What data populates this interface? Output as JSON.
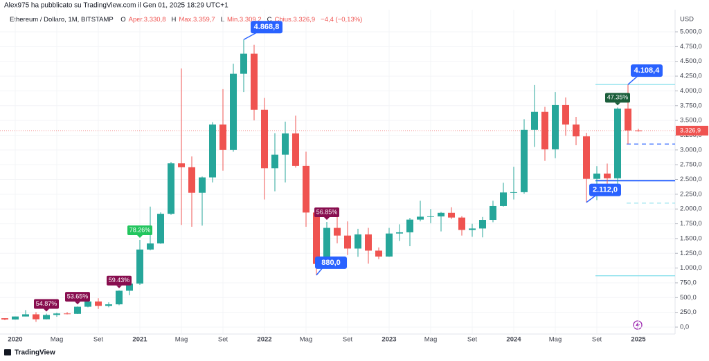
{
  "header": "Alex975 ha pubblicato su TradingView.com il Gen 01, 2025 18:29 UTC+1",
  "footer": "TradingView",
  "chart_data": {
    "type": "candlestick",
    "title": "Ethereum / Dollaro, 1M, BITSTAMP",
    "ohlc_legend": [
      {
        "key": "O",
        "text": "Aper.3.330,8"
      },
      {
        "key": "H",
        "text": "Max.3.359,7"
      },
      {
        "key": "L",
        "text": "Min.3.309,2"
      },
      {
        "key": "C",
        "text": "Chius.3.326,9"
      }
    ],
    "change": "−4,4 (−0,13%)",
    "y_unit": "USD",
    "categories": [
      null,
      "2020",
      null,
      null,
      null,
      "Mag",
      null,
      null,
      null,
      "Set",
      null,
      null,
      null,
      "2021",
      null,
      null,
      null,
      "Mag",
      null,
      null,
      null,
      "Set",
      null,
      null,
      null,
      "2022",
      null,
      null,
      null,
      "Mag",
      null,
      null,
      null,
      "Set",
      null,
      null,
      null,
      "2023",
      null,
      null,
      null,
      "Mag",
      null,
      null,
      null,
      "Set",
      null,
      null,
      null,
      "2024",
      null,
      null,
      null,
      "Mag",
      null,
      null,
      null,
      "Set",
      null,
      null,
      null,
      "2025"
    ],
    "open": [
      151,
      129,
      180,
      217,
      133,
      206,
      231,
      225,
      345,
      434,
      360,
      386,
      616,
      737,
      1314,
      1417,
      1919,
      2773,
      2707,
      2275,
      2535,
      3430,
      3000,
      4290,
      4630,
      3680,
      2690,
      2920,
      3280,
      2730,
      1940,
      1070,
      1680,
      1550,
      1330,
      1570,
      1295,
      1195,
      1585,
      1605,
      1820,
      1870,
      1875,
      1935,
      1855,
      1645,
      1670,
      1815,
      2050,
      2280,
      2285,
      3340,
      3645,
      3010,
      3760,
      3430,
      3230,
      2510,
      2600,
      2520,
      3700,
      3330.8
    ],
    "high": [
      153,
      180,
      288,
      254,
      228,
      245,
      255,
      350,
      444,
      489,
      420,
      623,
      757,
      1476,
      2040,
      1943,
      2797,
      4380,
      2890,
      2550,
      3470,
      4030,
      4460,
      4868.8,
      4780,
      3880,
      3285,
      3480,
      3580,
      2970,
      1970,
      1780,
      2030,
      1790,
      1665,
      1680,
      1350,
      1680,
      1740,
      1850,
      2140,
      2000,
      1950,
      2030,
      1880,
      1750,
      1865,
      2140,
      2445,
      2715,
      3520,
      4100,
      3730,
      3980,
      3890,
      3560,
      3290,
      2725,
      2770,
      3720,
      4108.4,
      3359.7
    ],
    "low": [
      117,
      126,
      180,
      90,
      130,
      176,
      216,
      222,
      335,
      308,
      335,
      370,
      540,
      715,
      1300,
      1410,
      1900,
      1730,
      1700,
      1718,
      2450,
      2650,
      2970,
      3980,
      3500,
      2160,
      2300,
      2450,
      2700,
      1700,
      880,
      1000,
      1420,
      1220,
      1190,
      1075,
      1150,
      1190,
      1460,
      1370,
      1790,
      1760,
      1620,
      1830,
      1550,
      1530,
      1520,
      1775,
      2040,
      2160,
      2260,
      3050,
      2815,
      2860,
      3240,
      3080,
      2112,
      2150,
      2300,
      2355,
      3100,
      3309.2
    ],
    "close": [
      129,
      180,
      217,
      133,
      206,
      231,
      225,
      345,
      434,
      360,
      386,
      616,
      737,
      1314,
      1417,
      1919,
      2773,
      2707,
      2275,
      2535,
      3430,
      3000,
      4290,
      4630,
      3680,
      2690,
      2920,
      3280,
      2730,
      1940,
      1070,
      1680,
      1550,
      1330,
      1570,
      1295,
      1195,
      1585,
      1605,
      1820,
      1870,
      1875,
      1935,
      1855,
      1645,
      1670,
      1815,
      2050,
      2280,
      2285,
      3340,
      3645,
      3010,
      3760,
      3430,
      3230,
      2510,
      2600,
      2520,
      3700,
      3330,
      3326.9
    ],
    "up_color": "#26a69a",
    "down_color": "#ef5350",
    "ylim": [
      -117,
      5375
    ],
    "yticks": [
      {
        "value": 0,
        "label": "0,0"
      },
      {
        "value": 250,
        "label": "250,0"
      },
      {
        "value": 500,
        "label": "500,0"
      },
      {
        "value": 750,
        "label": "750,0"
      },
      {
        "value": 1000,
        "label": "1.000,0"
      },
      {
        "value": 1250,
        "label": "1.250,0"
      },
      {
        "value": 1500,
        "label": "1.500,0"
      },
      {
        "value": 1750,
        "label": "1.750,0"
      },
      {
        "value": 2000,
        "label": "2.000,0"
      },
      {
        "value": 2250,
        "label": "2.250,0"
      },
      {
        "value": 2500,
        "label": "2.500,0"
      },
      {
        "value": 2750,
        "label": "2.750,0"
      },
      {
        "value": 3000,
        "label": "3.000,0"
      },
      {
        "value": 3250,
        "label": "3.250,0"
      },
      {
        "value": 3500,
        "label": "3.500,0"
      },
      {
        "value": 3750,
        "label": "3.750,0"
      },
      {
        "value": 4000,
        "label": "4.000,0"
      },
      {
        "value": 4250,
        "label": "4.250,0"
      },
      {
        "value": 4500,
        "label": "4.500,0"
      },
      {
        "value": 4750,
        "label": "4.750,0"
      },
      {
        "value": 5000,
        "label": "5.000,0"
      }
    ],
    "grid": true,
    "badges": [
      "54.87%",
      "53.65%",
      "59.43%",
      "78.26%",
      "56.85%",
      "47.35%"
    ],
    "price_labels": [
      {
        "value": 4868.8,
        "label": "4.868,8"
      },
      {
        "value": 880,
        "label": "880,0"
      },
      {
        "value": 2112,
        "label": "2.112,0"
      },
      {
        "value": 4108.4,
        "label": "4.108,4"
      }
    ],
    "last_price": {
      "value": 3326.9,
      "label": "3.326,9"
    },
    "levels": [
      4108.4,
      3100,
      2480,
      2100,
      870
    ]
  }
}
